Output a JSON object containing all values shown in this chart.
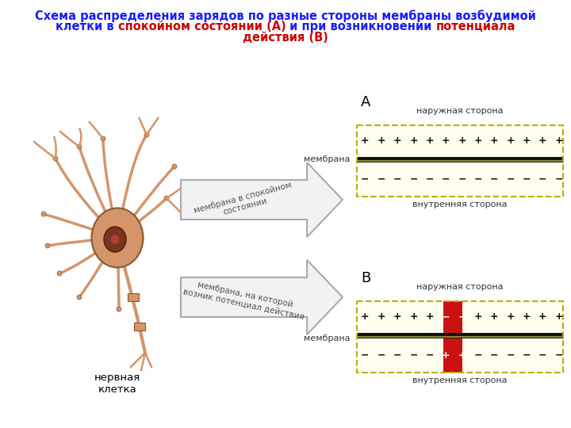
{
  "bg_color": "#ffffff",
  "title_line1": "Схема распределения зарядов по разные стороны мембраны возбудимой",
  "title_line2_blue1": "клетки в ",
  "title_line2_red1": "спокойном состоянии (А)",
  "title_line2_blue2": " и при возникновении ",
  "title_line2_red2": "потенциала",
  "title_line3_red": "действия (В)",
  "membrane_fill": "#fffff0",
  "membrane_border": "#b8b000",
  "membrane_line_color": "#111111",
  "membrane_line2_color": "#888833",
  "plus_color": "#111111",
  "minus_color": "#111111",
  "red_zone_color": "#cc1111",
  "arrow_fill": "#f0f0f0",
  "arrow_edge": "#999999",
  "arrow_text_color": "#555555",
  "nerve_label": "нервная\nклетка",
  "arrow1_label": "мембрана в спокойном\nсостоянии",
  "arrow2_label": "мембрана, на которой\nвозник потенциал действия",
  "outer_label": "наружная сторона",
  "inner_label": "внутренняя сторона",
  "membrana_label": "мембрана",
  "label_A": "А",
  "label_B": "В",
  "neuron_color": "#d4956a",
  "neuron_dark": "#8b5a2b",
  "neuron_nucleus": "#7a3522"
}
